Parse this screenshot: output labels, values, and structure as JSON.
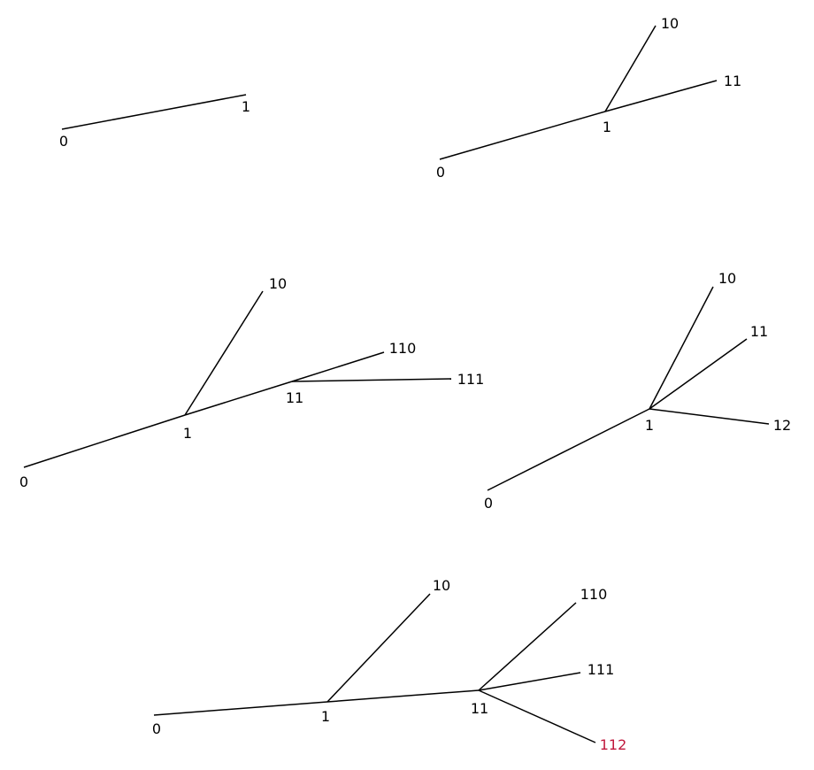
{
  "colors": {
    "line": "#000000",
    "label": "#000000",
    "highlight": "#c0183c"
  },
  "trees": [
    {
      "id": "tree-1",
      "labels": [
        "0",
        "1"
      ],
      "edges": [
        [
          "0",
          "1"
        ]
      ]
    },
    {
      "id": "tree-2",
      "labels": [
        "0",
        "1",
        "10",
        "11"
      ],
      "edges": [
        [
          "0",
          "1"
        ],
        [
          "1",
          "10"
        ],
        [
          "1",
          "11"
        ]
      ]
    },
    {
      "id": "tree-3",
      "labels": [
        "0",
        "1",
        "10",
        "11",
        "110",
        "111"
      ],
      "edges": [
        [
          "0",
          "1"
        ],
        [
          "1",
          "10"
        ],
        [
          "1",
          "11"
        ],
        [
          "11",
          "110"
        ],
        [
          "11",
          "111"
        ]
      ]
    },
    {
      "id": "tree-4",
      "labels": [
        "0",
        "1",
        "10",
        "11",
        "12"
      ],
      "edges": [
        [
          "0",
          "1"
        ],
        [
          "1",
          "10"
        ],
        [
          "1",
          "11"
        ],
        [
          "1",
          "12"
        ]
      ]
    },
    {
      "id": "tree-5",
      "labels": [
        "0",
        "1",
        "10",
        "11",
        "110",
        "111",
        "112"
      ],
      "highlighted": [
        "112"
      ],
      "edges": [
        [
          "0",
          "1"
        ],
        [
          "1",
          "10"
        ],
        [
          "1",
          "11"
        ],
        [
          "11",
          "110"
        ],
        [
          "11",
          "111"
        ],
        [
          "11",
          "112"
        ]
      ]
    }
  ]
}
